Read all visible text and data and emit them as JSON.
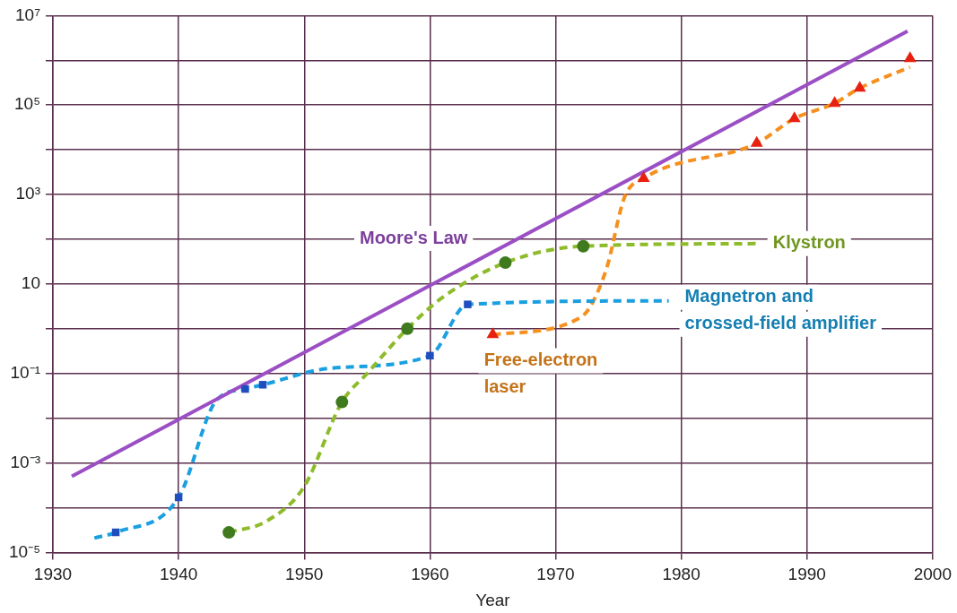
{
  "chart_data": {
    "type": "line",
    "xlabel": "Year",
    "log": "y",
    "grid": true,
    "legend": false,
    "xlim": [
      1930,
      2000
    ],
    "xticks": [
      1930,
      1940,
      1950,
      1960,
      1970,
      1980,
      1990,
      2000
    ],
    "ylim": [
      1e-05,
      10000000
    ],
    "yticks": [
      {
        "value": 1e-05,
        "label": "10⁻⁵"
      },
      {
        "value": 0.0001,
        "label": null
      },
      {
        "value": 0.001,
        "label": "10⁻³"
      },
      {
        "value": 0.01,
        "label": null
      },
      {
        "value": 0.1,
        "label": "10⁻¹"
      },
      {
        "value": 1,
        "label": null
      },
      10,
      {
        "value": 100,
        "label": null
      },
      {
        "value": 1000,
        "label": "10³"
      },
      {
        "value": 10000,
        "label": null
      },
      {
        "value": 100000,
        "label": "10⁵"
      },
      {
        "value": 1000000,
        "label": null
      },
      {
        "value": 10000000,
        "label": "10⁷"
      }
    ],
    "series": [
      {
        "name": "Moore's Law",
        "type": "line",
        "color": "#9b4fc4",
        "line_style": "solid",
        "marker": "none",
        "x": [
          1931.5,
          1998
        ],
        "values": [
          0.0005,
          4500000
        ]
      },
      {
        "name": "Klystron",
        "type": "line",
        "color": "#8dbb2a",
        "line_style": "dashed",
        "marker": "none",
        "x": [
          1944,
          1947,
          1950,
          1953,
          1955,
          1958.2,
          1961,
          1966,
          1972.2,
          1986
        ],
        "values": [
          2.8e-05,
          5e-05,
          0.0003,
          0.023,
          0.1,
          1,
          5,
          30,
          70,
          80
        ]
      },
      {
        "type": "scatter",
        "color": "#3f7a1e",
        "marker": "circle",
        "x": [
          1944,
          1953,
          1958.2,
          1966,
          1972.2
        ],
        "values": [
          2.8e-05,
          0.023,
          1,
          30,
          70
        ]
      },
      {
        "name": "Magnetron and crossed-field amplifier",
        "type": "line",
        "color": "#1a9fe0",
        "line_style": "dashed",
        "marker": "none",
        "x": [
          1933.3,
          1935,
          1940,
          1943,
          1945.3,
          1946.7,
          1952,
          1960,
          1963,
          1979
        ],
        "values": [
          2.1e-05,
          2.8e-05,
          0.00017,
          0.025,
          0.045,
          0.056,
          0.13,
          0.25,
          3.5,
          4.2
        ]
      },
      {
        "type": "scatter",
        "color": "#1f4fbf",
        "marker": "square",
        "x": [
          1935,
          1940,
          1945.3,
          1946.7,
          1960,
          1963
        ],
        "values": [
          2.8e-05,
          0.00017,
          0.045,
          0.056,
          0.25,
          3.5
        ]
      },
      {
        "name": "Free-electron laser",
        "type": "line",
        "color": "#f5901e",
        "line_style": "dashed",
        "marker": "none",
        "x": [
          1965,
          1972,
          1974,
          1975.5,
          1977,
          1986,
          1989,
          1992.2,
          1994.2,
          1998.2
        ],
        "values": [
          0.74,
          1.8,
          20,
          900,
          2300,
          14000,
          50000,
          110000,
          240000,
          700000
        ]
      },
      {
        "type": "scatter",
        "color": "#e8200f",
        "marker": "triangle",
        "x": [
          1965,
          1977,
          1986,
          1989,
          1992.2,
          1994.2,
          1998.2
        ],
        "values": [
          0.74,
          2300,
          14000,
          50000,
          110000,
          240000,
          1100000
        ]
      }
    ]
  }
}
